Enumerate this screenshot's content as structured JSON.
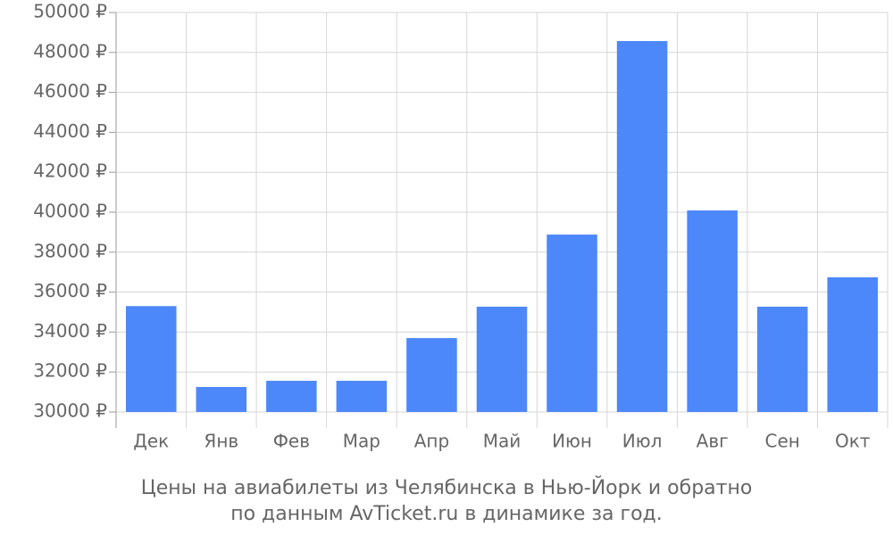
{
  "chart_data": {
    "type": "bar",
    "caption_lines": [
      "Цены на авиабилеты из Челябинска в Нью-Йорк и обратно",
      "по данным AvTicket.ru в динамике за год."
    ],
    "categories": [
      "Дек",
      "Янв",
      "Фев",
      "Мар",
      "Апр",
      "Май",
      "Июн",
      "Июл",
      "Авг",
      "Сен",
      "Окт"
    ],
    "values": [
      35300,
      31250,
      31560,
      31560,
      33700,
      35270,
      38880,
      48570,
      40090,
      35270,
      36740
    ],
    "color": "#4d88fa",
    "ylim": [
      30000,
      50000
    ],
    "yticks": [
      {
        "value": 30000,
        "label": "30000 ₽"
      },
      {
        "value": 32000,
        "label": "32000 ₽"
      },
      {
        "value": 34000,
        "label": "34000 ₽"
      },
      {
        "value": 36000,
        "label": "36000 ₽"
      },
      {
        "value": 38000,
        "label": "38000 ₽"
      },
      {
        "value": 40000,
        "label": "40000 ₽"
      },
      {
        "value": 42000,
        "label": "42000 ₽"
      },
      {
        "value": 44000,
        "label": "44000 ₽"
      },
      {
        "value": 46000,
        "label": "46000 ₽"
      },
      {
        "value": 48000,
        "label": "48000 ₽"
      },
      {
        "value": 50000,
        "label": "50000 ₽"
      }
    ],
    "grid": true
  }
}
